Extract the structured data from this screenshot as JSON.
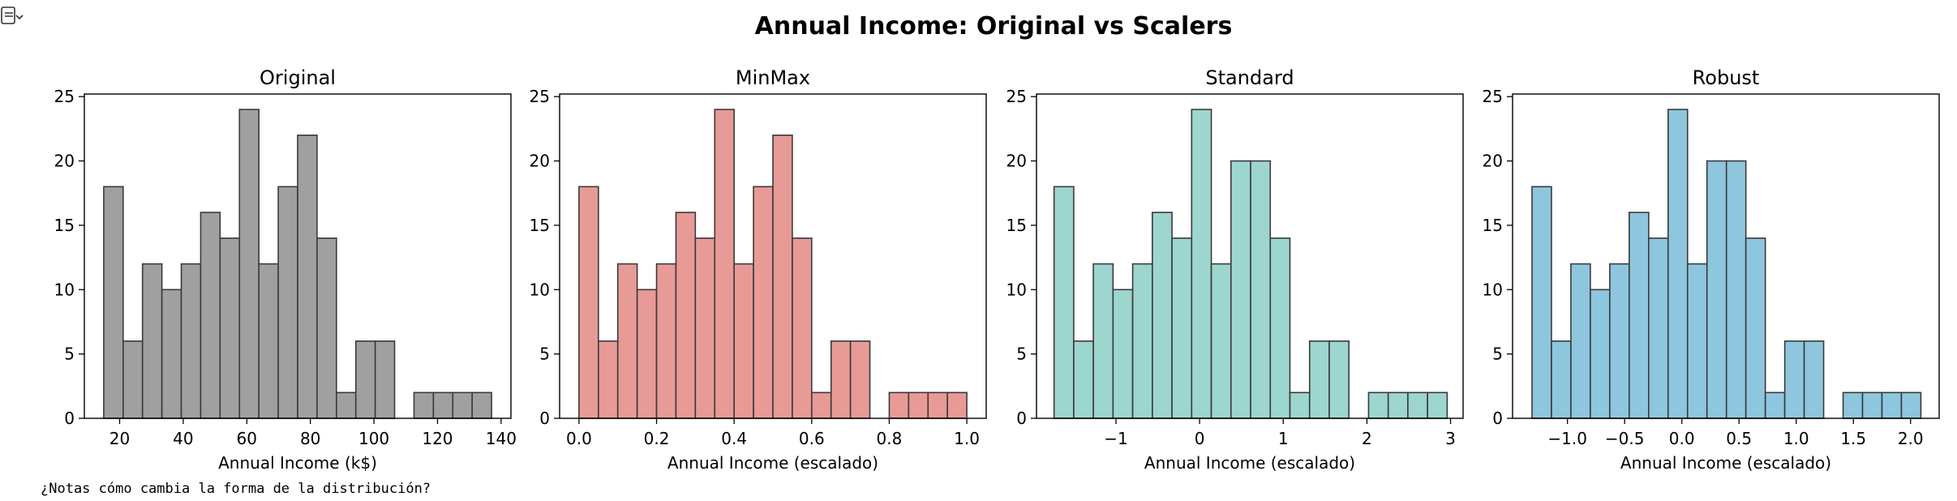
{
  "suptitle": "Annual Income: Original vs Scalers",
  "note": "¿Notas cómo cambia la forma de la distribución?",
  "output_icon": "output-toggle-icon",
  "chart_data": [
    {
      "type": "bar",
      "title": "Original",
      "xlabel": "Annual Income (k$)",
      "ylabel": "",
      "color": "#a0a0a0",
      "xlim": [
        8.9,
        143.1
      ],
      "ylim": [
        0,
        25.2
      ],
      "xticks": [
        20,
        40,
        60,
        80,
        100,
        120,
        140
      ],
      "xtick_labels": [
        "20",
        "40",
        "60",
        "80",
        "100",
        "120",
        "140"
      ],
      "yticks": [
        0,
        5,
        10,
        15,
        20,
        25
      ],
      "ytick_labels": [
        "0",
        "5",
        "10",
        "15",
        "20",
        "25"
      ],
      "bin_edges": [
        15,
        21.1,
        27.2,
        33.3,
        39.4,
        45.5,
        51.6,
        57.7,
        63.8,
        69.9,
        76,
        82.1,
        88.2,
        94.3,
        100.4,
        106.5,
        112.6,
        118.7,
        124.8,
        130.9,
        137
      ],
      "values": [
        18,
        6,
        12,
        10,
        12,
        16,
        14,
        24,
        12,
        18,
        22,
        14,
        2,
        6,
        6,
        0,
        2,
        2,
        2,
        2
      ]
    },
    {
      "type": "bar",
      "title": "MinMax",
      "xlabel": "Annual Income (escalado)",
      "ylabel": "",
      "color": "#e89a96",
      "xlim": [
        -0.05,
        1.05
      ],
      "ylim": [
        0,
        25.2
      ],
      "xticks": [
        0,
        0.2,
        0.4,
        0.6,
        0.8,
        1.0
      ],
      "xtick_labels": [
        "0.0",
        "0.2",
        "0.4",
        "0.6",
        "0.8",
        "1.0"
      ],
      "yticks": [
        0,
        5,
        10,
        15,
        20,
        25
      ],
      "ytick_labels": [
        "0",
        "5",
        "10",
        "15",
        "20",
        "25"
      ],
      "bin_edges": [
        0,
        0.05,
        0.1,
        0.15,
        0.2,
        0.25,
        0.3,
        0.35,
        0.4,
        0.45,
        0.5,
        0.55,
        0.6,
        0.65,
        0.7,
        0.75,
        0.8,
        0.85,
        0.9,
        0.95,
        1.0
      ],
      "values": [
        18,
        6,
        12,
        10,
        12,
        16,
        14,
        24,
        12,
        18,
        22,
        14,
        2,
        6,
        6,
        0,
        2,
        2,
        2,
        2
      ]
    },
    {
      "type": "bar",
      "title": "Standard",
      "xlabel": "Annual Income (escalado)",
      "ylabel": "",
      "color": "#9dd5cf",
      "xlim": [
        -1.95,
        3.15
      ],
      "ylim": [
        0,
        25.2
      ],
      "xticks": [
        -1,
        0,
        1,
        2,
        3
      ],
      "xtick_labels": [
        "−1",
        "0",
        "1",
        "2",
        "3"
      ],
      "yticks": [
        0,
        5,
        10,
        15,
        20,
        25
      ],
      "ytick_labels": [
        "0",
        "5",
        "10",
        "15",
        "20",
        "25"
      ],
      "bin_edges": [
        -1.74,
        -1.505,
        -1.27,
        -1.035,
        -0.8,
        -0.565,
        -0.33,
        -0.095,
        0.14,
        0.375,
        0.61,
        0.845,
        1.08,
        1.315,
        1.55,
        1.785,
        2.02,
        2.255,
        2.49,
        2.725,
        2.96
      ],
      "values": [
        18,
        6,
        12,
        10,
        12,
        16,
        14,
        24,
        12,
        20,
        20,
        14,
        2,
        6,
        6,
        0,
        2,
        2,
        2,
        2
      ]
    },
    {
      "type": "bar",
      "title": "Robust",
      "xlabel": "Annual Income (escalado)",
      "ylabel": "",
      "color": "#8ec6dd",
      "xlim": [
        -1.48,
        2.25
      ],
      "ylim": [
        0,
        25.2
      ],
      "xticks": [
        -1.0,
        -0.5,
        0.0,
        0.5,
        1.0,
        1.5,
        2.0
      ],
      "xtick_labels": [
        "−1.0",
        "−0.5",
        "0.0",
        "0.5",
        "1.0",
        "1.5",
        "2.0"
      ],
      "yticks": [
        0,
        5,
        10,
        15,
        20,
        25
      ],
      "ytick_labels": [
        "0",
        "5",
        "10",
        "15",
        "20",
        "25"
      ],
      "bin_edges": [
        -1.31,
        -1.14,
        -0.97,
        -0.8,
        -0.63,
        -0.46,
        -0.29,
        -0.12,
        0.05,
        0.22,
        0.39,
        0.56,
        0.73,
        0.9,
        1.07,
        1.24,
        1.41,
        1.58,
        1.75,
        1.92,
        2.09
      ],
      "values": [
        18,
        6,
        12,
        10,
        12,
        16,
        14,
        24,
        12,
        20,
        20,
        14,
        2,
        6,
        6,
        0,
        2,
        2,
        2,
        2
      ]
    }
  ]
}
